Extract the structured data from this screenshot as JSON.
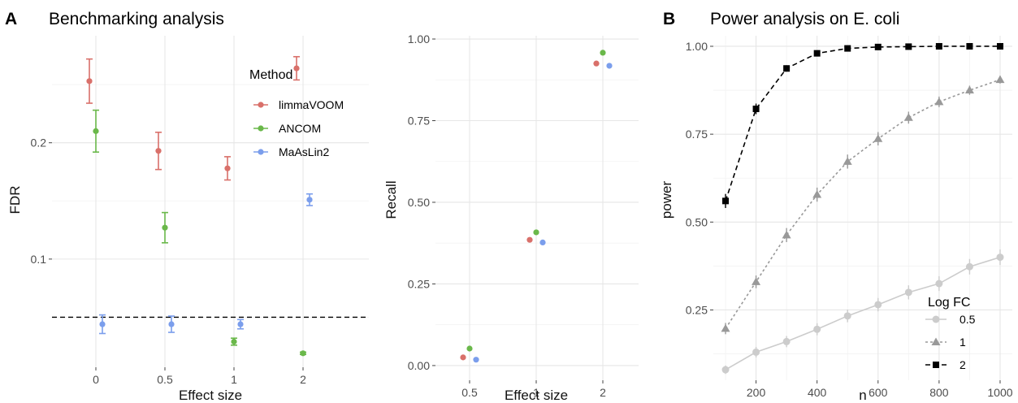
{
  "colors": {
    "limmaVOOM": "#d9706a",
    "ANCOM": "#6ab84a",
    "MaAsLin2": "#7b9eec",
    "logfc_0_5": "#cccccc",
    "logfc_1": "#999999",
    "logfc_2": "#000000"
  },
  "chart_data": [
    {
      "type": "scatter",
      "panel": "A",
      "title": "Benchmarking analysis",
      "xlabel": "Effect size",
      "ylabel": "FDR",
      "categories": [
        "0",
        "0.5",
        "1",
        "2"
      ],
      "yticks": [
        "0.1",
        "0.2"
      ],
      "ylim": [
        0.007,
        0.292
      ],
      "reference_line": 0.05,
      "legend_title": "Method",
      "legend_position": "top-right",
      "error_bars": true,
      "series": [
        {
          "name": "limmaVOOM",
          "values": [
            0.253,
            0.193,
            0.178,
            0.264
          ],
          "lower": [
            0.234,
            0.177,
            0.168,
            0.254
          ],
          "upper": [
            0.272,
            0.209,
            0.188,
            0.274
          ]
        },
        {
          "name": "ANCOM",
          "values": [
            0.21,
            0.127,
            0.029,
            0.019
          ],
          "lower": [
            0.192,
            0.114,
            0.026,
            0.018
          ],
          "upper": [
            0.228,
            0.14,
            0.032,
            0.02
          ]
        },
        {
          "name": "MaAsLin2",
          "values": [
            0.044,
            0.044,
            0.044,
            0.151
          ],
          "lower": [
            0.036,
            0.037,
            0.04,
            0.146
          ],
          "upper": [
            0.052,
            0.051,
            0.048,
            0.156
          ]
        }
      ]
    },
    {
      "type": "scatter",
      "xlabel": "Effect size",
      "ylabel": "Recall",
      "categories": [
        "0.5",
        "1",
        "2"
      ],
      "yticks": [
        "0.00",
        "0.25",
        "0.50",
        "0.75",
        "1.00"
      ],
      "ylim": [
        -0.045,
        1.01
      ],
      "series": [
        {
          "name": "limmaVOOM",
          "values": [
            0.025,
            0.385,
            0.925
          ]
        },
        {
          "name": "ANCOM",
          "values": [
            0.052,
            0.408,
            0.958
          ]
        },
        {
          "name": "MaAsLin2",
          "values": [
            0.018,
            0.377,
            0.918
          ]
        }
      ]
    },
    {
      "type": "line",
      "panel": "B",
      "title": "Power analysis on E. coli",
      "xlabel": "n",
      "ylabel": "power",
      "x": [
        100,
        200,
        300,
        400,
        500,
        600,
        700,
        800,
        900,
        1000
      ],
      "xticks": [
        "200",
        "400",
        "600",
        "800",
        "1000"
      ],
      "yticks": [
        "0.25",
        "0.50",
        "0.75",
        "1.00"
      ],
      "xlim": [
        60,
        1040
      ],
      "ylim": [
        0.05,
        1.03
      ],
      "legend_title": "Log FC",
      "legend_position": "bottom-right",
      "series": [
        {
          "name": "0.5",
          "values": [
            0.08,
            0.13,
            0.16,
            0.195,
            0.233,
            0.265,
            0.3,
            0.325,
            0.373,
            0.4
          ],
          "err": [
            0.012,
            0.015,
            0.016,
            0.017,
            0.018,
            0.019,
            0.02,
            0.021,
            0.022,
            0.022
          ]
        },
        {
          "name": "1",
          "values": [
            0.197,
            0.33,
            0.463,
            0.578,
            0.672,
            0.737,
            0.797,
            0.842,
            0.875,
            0.905
          ],
          "err": [
            0.016,
            0.018,
            0.02,
            0.02,
            0.02,
            0.019,
            0.017,
            0.015,
            0.013,
            0.011
          ]
        },
        {
          "name": "2",
          "values": [
            0.56,
            0.822,
            0.937,
            0.98,
            0.994,
            0.998,
            0.999,
            1.0,
            1.0,
            1.0
          ],
          "err": [
            0.02,
            0.015,
            0.009,
            0.006,
            0.004,
            0.003,
            0.002,
            0.001,
            0.001,
            0.001
          ]
        }
      ]
    }
  ]
}
